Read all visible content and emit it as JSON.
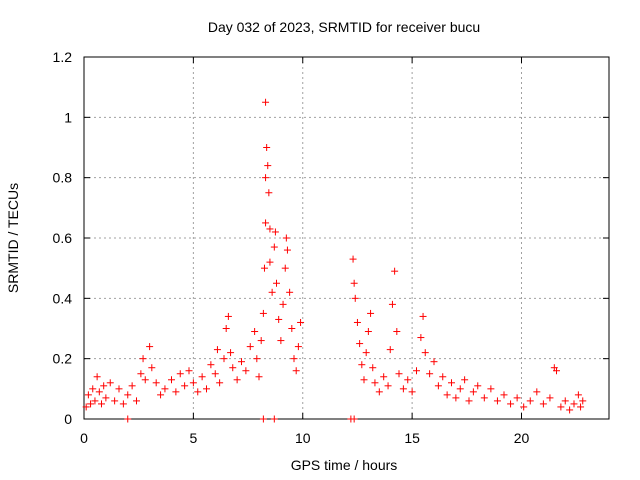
{
  "chart_data": {
    "type": "scatter",
    "title": "Day 032 of 2023, SRMTID for receiver bucu",
    "xlabel": "GPS time / hours",
    "ylabel": "SRMTID / TECUs",
    "xlim": [
      0,
      24
    ],
    "ylim": [
      0,
      1.2
    ],
    "x_ticks": [
      0,
      5,
      10,
      15,
      20
    ],
    "x_tick_labels": [
      "0",
      "5",
      "10",
      "15",
      "20"
    ],
    "y_ticks": [
      0,
      0.2,
      0.4,
      0.6,
      0.8,
      1.0,
      1.2
    ],
    "y_tick_labels": [
      "0",
      "0.2",
      "0.4",
      "0.6",
      "0.8",
      "1",
      "1.2"
    ],
    "grid": true,
    "marker": "+",
    "series": [
      {
        "name": "SRMTID",
        "color": "#ff0000",
        "points": [
          {
            "x": 0.1,
            "y": 0.04
          },
          {
            "x": 0.2,
            "y": 0.08
          },
          {
            "x": 0.3,
            "y": 0.05
          },
          {
            "x": 0.4,
            "y": 0.1
          },
          {
            "x": 0.5,
            "y": 0.06
          },
          {
            "x": 0.6,
            "y": 0.14
          },
          {
            "x": 0.7,
            "y": 0.09
          },
          {
            "x": 0.8,
            "y": 0.05
          },
          {
            "x": 0.9,
            "y": 0.11
          },
          {
            "x": 1.0,
            "y": 0.07
          },
          {
            "x": 1.2,
            "y": 0.12
          },
          {
            "x": 1.4,
            "y": 0.06
          },
          {
            "x": 1.6,
            "y": 0.1
          },
          {
            "x": 1.8,
            "y": 0.05
          },
          {
            "x": 2.0,
            "y": 0.08
          },
          {
            "x": 2.2,
            "y": 0.11
          },
          {
            "x": 2.4,
            "y": 0.06
          },
          {
            "x": 2.6,
            "y": 0.15
          },
          {
            "x": 2.7,
            "y": 0.2
          },
          {
            "x": 2.8,
            "y": 0.13
          },
          {
            "x": 3.0,
            "y": 0.24
          },
          {
            "x": 3.1,
            "y": 0.17
          },
          {
            "x": 3.3,
            "y": 0.12
          },
          {
            "x": 3.5,
            "y": 0.08
          },
          {
            "x": 3.7,
            "y": 0.1
          },
          {
            "x": 4.0,
            "y": 0.13
          },
          {
            "x": 4.2,
            "y": 0.09
          },
          {
            "x": 4.4,
            "y": 0.15
          },
          {
            "x": 4.6,
            "y": 0.11
          },
          {
            "x": 4.8,
            "y": 0.16
          },
          {
            "x": 5.0,
            "y": 0.12
          },
          {
            "x": 5.2,
            "y": 0.09
          },
          {
            "x": 5.4,
            "y": 0.14
          },
          {
            "x": 5.6,
            "y": 0.1
          },
          {
            "x": 5.8,
            "y": 0.18
          },
          {
            "x": 6.0,
            "y": 0.15
          },
          {
            "x": 6.1,
            "y": 0.23
          },
          {
            "x": 6.2,
            "y": 0.12
          },
          {
            "x": 6.4,
            "y": 0.2
          },
          {
            "x": 6.5,
            "y": 0.3
          },
          {
            "x": 6.6,
            "y": 0.34
          },
          {
            "x": 6.7,
            "y": 0.22
          },
          {
            "x": 6.8,
            "y": 0.17
          },
          {
            "x": 7.0,
            "y": 0.13
          },
          {
            "x": 7.2,
            "y": 0.19
          },
          {
            "x": 7.4,
            "y": 0.16
          },
          {
            "x": 7.6,
            "y": 0.24
          },
          {
            "x": 7.8,
            "y": 0.29
          },
          {
            "x": 7.9,
            "y": 0.2
          },
          {
            "x": 8.0,
            "y": 0.14
          },
          {
            "x": 8.1,
            "y": 0.26
          },
          {
            "x": 8.2,
            "y": 0.35
          },
          {
            "x": 8.25,
            "y": 0.5
          },
          {
            "x": 8.3,
            "y": 0.65
          },
          {
            "x": 8.3,
            "y": 0.8
          },
          {
            "x": 8.35,
            "y": 0.9
          },
          {
            "x": 8.3,
            "y": 1.05
          },
          {
            "x": 8.4,
            "y": 0.84
          },
          {
            "x": 8.45,
            "y": 0.75
          },
          {
            "x": 8.5,
            "y": 0.63
          },
          {
            "x": 8.5,
            "y": 0.52
          },
          {
            "x": 8.6,
            "y": 0.42
          },
          {
            "x": 8.7,
            "y": 0.57
          },
          {
            "x": 8.75,
            "y": 0.62
          },
          {
            "x": 8.8,
            "y": 0.45
          },
          {
            "x": 8.9,
            "y": 0.33
          },
          {
            "x": 9.0,
            "y": 0.26
          },
          {
            "x": 9.1,
            "y": 0.38
          },
          {
            "x": 9.2,
            "y": 0.5
          },
          {
            "x": 9.25,
            "y": 0.6
          },
          {
            "x": 9.3,
            "y": 0.56
          },
          {
            "x": 9.4,
            "y": 0.42
          },
          {
            "x": 9.5,
            "y": 0.3
          },
          {
            "x": 9.6,
            "y": 0.2
          },
          {
            "x": 9.7,
            "y": 0.16
          },
          {
            "x": 9.8,
            "y": 0.24
          },
          {
            "x": 9.9,
            "y": 0.32
          },
          {
            "x": 12.3,
            "y": 0.53
          },
          {
            "x": 12.35,
            "y": 0.45
          },
          {
            "x": 12.4,
            "y": 0.4
          },
          {
            "x": 12.5,
            "y": 0.32
          },
          {
            "x": 12.6,
            "y": 0.25
          },
          {
            "x": 12.7,
            "y": 0.18
          },
          {
            "x": 12.8,
            "y": 0.13
          },
          {
            "x": 12.9,
            "y": 0.22
          },
          {
            "x": 13.0,
            "y": 0.29
          },
          {
            "x": 13.1,
            "y": 0.35
          },
          {
            "x": 13.2,
            "y": 0.17
          },
          {
            "x": 13.3,
            "y": 0.12
          },
          {
            "x": 13.5,
            "y": 0.09
          },
          {
            "x": 13.7,
            "y": 0.14
          },
          {
            "x": 13.9,
            "y": 0.11
          },
          {
            "x": 14.0,
            "y": 0.23
          },
          {
            "x": 14.1,
            "y": 0.38
          },
          {
            "x": 14.2,
            "y": 0.49
          },
          {
            "x": 14.3,
            "y": 0.29
          },
          {
            "x": 14.4,
            "y": 0.15
          },
          {
            "x": 14.6,
            "y": 0.1
          },
          {
            "x": 14.8,
            "y": 0.13
          },
          {
            "x": 15.0,
            "y": 0.09
          },
          {
            "x": 15.2,
            "y": 0.16
          },
          {
            "x": 15.4,
            "y": 0.27
          },
          {
            "x": 15.5,
            "y": 0.34
          },
          {
            "x": 15.6,
            "y": 0.22
          },
          {
            "x": 15.8,
            "y": 0.15
          },
          {
            "x": 16.0,
            "y": 0.19
          },
          {
            "x": 16.2,
            "y": 0.11
          },
          {
            "x": 16.4,
            "y": 0.14
          },
          {
            "x": 16.6,
            "y": 0.08
          },
          {
            "x": 16.8,
            "y": 0.12
          },
          {
            "x": 17.0,
            "y": 0.07
          },
          {
            "x": 17.2,
            "y": 0.1
          },
          {
            "x": 17.4,
            "y": 0.13
          },
          {
            "x": 17.6,
            "y": 0.06
          },
          {
            "x": 17.8,
            "y": 0.09
          },
          {
            "x": 18.0,
            "y": 0.11
          },
          {
            "x": 18.3,
            "y": 0.07
          },
          {
            "x": 18.6,
            "y": 0.1
          },
          {
            "x": 18.9,
            "y": 0.06
          },
          {
            "x": 19.2,
            "y": 0.08
          },
          {
            "x": 19.5,
            "y": 0.05
          },
          {
            "x": 19.8,
            "y": 0.07
          },
          {
            "x": 20.1,
            "y": 0.04
          },
          {
            "x": 20.4,
            "y": 0.06
          },
          {
            "x": 20.7,
            "y": 0.09
          },
          {
            "x": 21.0,
            "y": 0.05
          },
          {
            "x": 21.3,
            "y": 0.07
          },
          {
            "x": 21.5,
            "y": 0.17
          },
          {
            "x": 21.6,
            "y": 0.16
          },
          {
            "x": 21.8,
            "y": 0.04
          },
          {
            "x": 22.0,
            "y": 0.06
          },
          {
            "x": 22.2,
            "y": 0.03
          },
          {
            "x": 22.4,
            "y": 0.05
          },
          {
            "x": 22.6,
            "y": 0.08
          },
          {
            "x": 22.7,
            "y": 0.04
          },
          {
            "x": 22.8,
            "y": 0.06
          },
          {
            "x": 2.0,
            "y": 0.0
          },
          {
            "x": 8.2,
            "y": 0.0
          },
          {
            "x": 8.7,
            "y": 0.0
          },
          {
            "x": 12.2,
            "y": 0.0
          },
          {
            "x": 12.35,
            "y": 0.0
          }
        ]
      }
    ]
  }
}
